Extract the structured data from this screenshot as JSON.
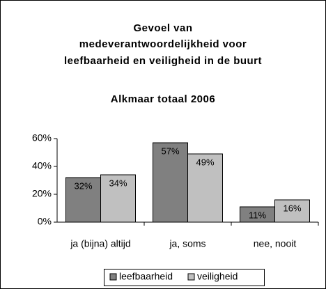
{
  "chart_data": {
    "type": "bar",
    "title": [
      "Gevoel van",
      "medeverantwoordelijkheid voor",
      "leefbaarheid en veiligheid in de buurt"
    ],
    "subtitle": "Alkmaar totaal 2006",
    "categories": [
      "ja (bijna) altijd",
      "ja, soms",
      "nee, nooit"
    ],
    "series": [
      {
        "name": "leefbaarheid",
        "color": "#808080",
        "values": [
          32,
          57,
          11
        ],
        "value_labels": [
          "32%",
          "57%",
          "11%"
        ]
      },
      {
        "name": "veiligheid",
        "color": "#c0c0c0",
        "values": [
          34,
          49,
          16
        ],
        "value_labels": [
          "34%",
          "49%",
          "16%"
        ]
      }
    ],
    "ylim": [
      0,
      60
    ],
    "yticks": [
      {
        "value": 0,
        "label": "0%"
      },
      {
        "value": 20,
        "label": "20%"
      },
      {
        "value": 40,
        "label": "40%"
      },
      {
        "value": 60,
        "label": "60%"
      }
    ],
    "legend": "bottom"
  }
}
